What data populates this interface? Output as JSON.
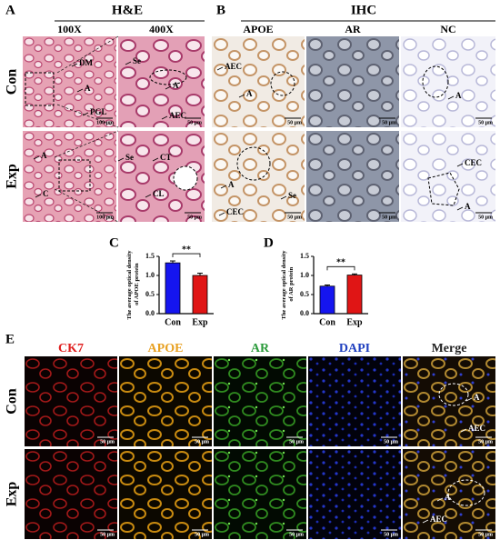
{
  "panel_a": {
    "letter": "A",
    "title": "H&E",
    "columns": [
      "100X",
      "400X"
    ],
    "rows": [
      "Con",
      "Exp"
    ],
    "images": [
      {
        "labels": [
          "DM",
          "A",
          "PGL"
        ],
        "scale_bar": "100 μm"
      },
      {
        "labels": [
          "Se",
          "A",
          "AEC"
        ],
        "scale_bar": "50 μm"
      },
      {
        "labels": [
          "A",
          "C"
        ],
        "scale_bar": "100 μm"
      },
      {
        "labels": [
          "Se",
          "CT",
          "CL"
        ],
        "scale_bar": "50 μm"
      }
    ]
  },
  "panel_b": {
    "letter": "B",
    "title": "IHC",
    "columns": [
      "APOE",
      "AR",
      "NC"
    ],
    "images": [
      {
        "labels": [
          "AEC",
          "A"
        ],
        "scale_bar": "50 μm"
      },
      {
        "scale_bar": "50 μm"
      },
      {
        "labels": [
          "A"
        ],
        "scale_bar": "50 μm"
      },
      {
        "labels": [
          "A",
          "Se",
          "CEC"
        ],
        "scale_bar": "50 μm"
      },
      {
        "scale_bar": "50 μm"
      },
      {
        "labels": [
          "CEC",
          "A"
        ],
        "scale_bar": "50 μm"
      }
    ]
  },
  "panel_e": {
    "letter": "E",
    "columns": [
      "CK7",
      "APOE",
      "AR",
      "DAPI",
      "Merge"
    ],
    "column_colors": [
      "#e02020",
      "#e8a020",
      "#2a9a3a",
      "#2040c0",
      "#222222"
    ],
    "rows": [
      "Con",
      "Exp"
    ],
    "images": [
      {
        "scale_bar": "50 μm"
      },
      {
        "scale_bar": "50 μm"
      },
      {
        "scale_bar": "50 μm"
      },
      {
        "scale_bar": "50 μm"
      },
      {
        "labels": [
          "A",
          "AEC"
        ],
        "scale_bar": "50 μm"
      },
      {
        "scale_bar": "50 μm"
      },
      {
        "scale_bar": "50 μm"
      },
      {
        "scale_bar": "50 μm"
      },
      {
        "scale_bar": "50 μm"
      },
      {
        "labels": [
          "A",
          "AEC"
        ],
        "scale_bar": "50 μm"
      }
    ]
  },
  "chart_data": [
    {
      "type": "bar",
      "panel_label": "C",
      "y_label": "The average optical density of APOE protein",
      "categories": [
        "Con",
        "Exp"
      ],
      "values": [
        1.33,
        1.0
      ],
      "errors": [
        0.05,
        0.06
      ],
      "colors": [
        "#1515f0",
        "#e01515"
      ],
      "ylim": [
        0,
        1.5
      ],
      "yticks": [
        {
          "value": 0,
          "label": "0.0"
        },
        0.5,
        {
          "value": 1,
          "label": "1.0"
        },
        1.5
      ],
      "significance": "**"
    },
    {
      "type": "bar",
      "panel_label": "D",
      "y_label": "The average optical density of AR protein",
      "categories": [
        "Con",
        "Exp"
      ],
      "values": [
        0.72,
        1.01
      ],
      "errors": [
        0.03,
        0.03
      ],
      "colors": [
        "#1515f0",
        "#e01515"
      ],
      "ylim": [
        0,
        1.5
      ],
      "yticks": [
        {
          "value": 0,
          "label": "0.0"
        },
        0.5,
        {
          "value": 1,
          "label": "1.0"
        },
        1.5
      ],
      "significance": "**"
    }
  ]
}
